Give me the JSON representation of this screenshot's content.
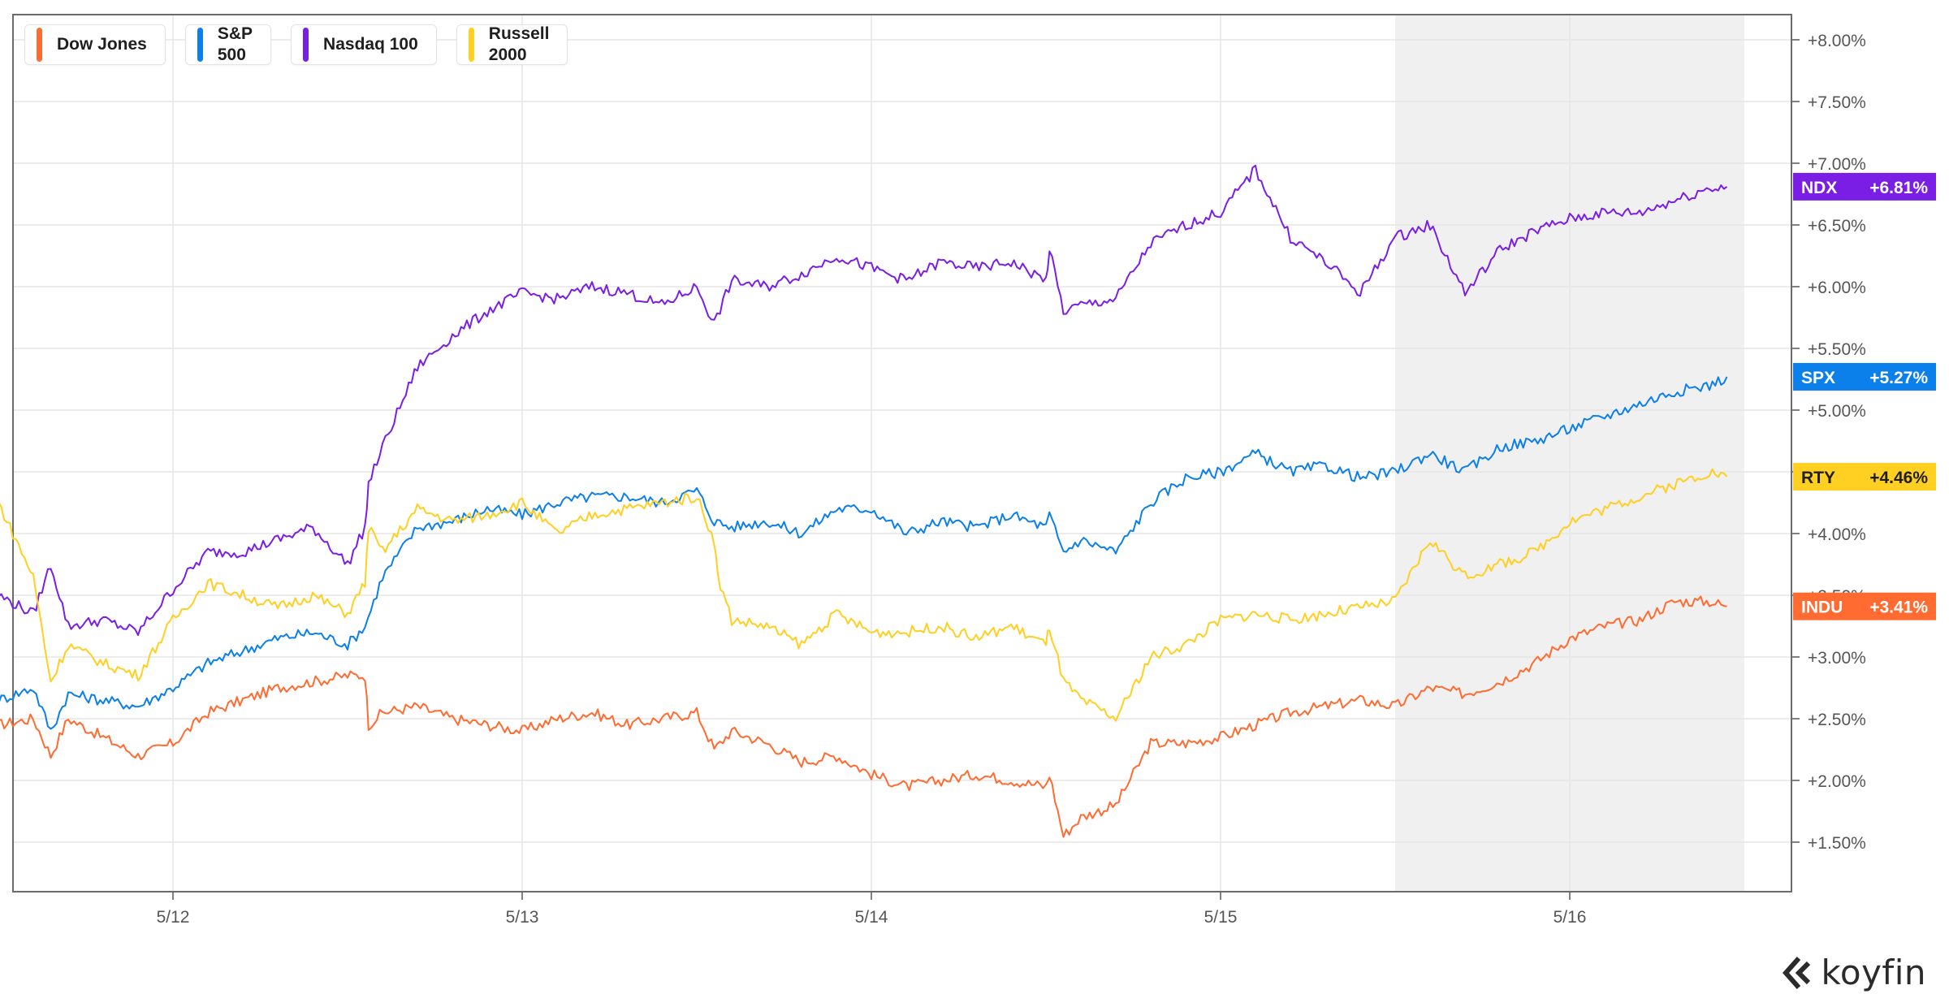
{
  "chart_data": {
    "type": "line",
    "x_ticks": [
      "5/12",
      "5/13",
      "5/14",
      "5/15",
      "5/16"
    ],
    "y_ticks": [
      "+1.50%",
      "+2.00%",
      "+2.50%",
      "+3.00%",
      "+3.50%",
      "+4.00%",
      "+4.50%",
      "+5.00%",
      "+5.50%",
      "+6.00%",
      "+6.50%",
      "+7.00%",
      "+7.50%",
      "+8.00%"
    ],
    "ylim": [
      1.1,
      8.2
    ],
    "grid": true,
    "legend_position": "top-left",
    "shaded_sessions": [
      [
        5.5,
        6.5
      ],
      [
        7.5,
        8.5
      ]
    ],
    "x_axis_note": "x values are trading days; day 1 = 5/12, 0.5 = session start",
    "series": [
      {
        "name": "Dow Jones",
        "ticker": "INDU",
        "end_label": "+3.41%",
        "end_value": 3.41,
        "color": "#ff6b30",
        "points": [
          [
            0.5,
            2.45
          ],
          [
            0.6,
            2.5
          ],
          [
            0.65,
            2.2
          ],
          [
            0.7,
            2.5
          ],
          [
            0.8,
            2.35
          ],
          [
            0.9,
            2.2
          ],
          [
            1.0,
            2.3
          ],
          [
            1.1,
            2.55
          ],
          [
            1.2,
            2.65
          ],
          [
            1.3,
            2.75
          ],
          [
            1.4,
            2.8
          ],
          [
            1.5,
            2.85
          ],
          [
            1.55,
            2.85
          ],
          [
            1.56,
            2.45
          ],
          [
            1.6,
            2.55
          ],
          [
            1.7,
            2.6
          ],
          [
            1.8,
            2.5
          ],
          [
            1.9,
            2.45
          ],
          [
            2.0,
            2.4
          ],
          [
            2.1,
            2.5
          ],
          [
            2.2,
            2.55
          ],
          [
            2.3,
            2.45
          ],
          [
            2.4,
            2.5
          ],
          [
            2.5,
            2.55
          ],
          [
            2.55,
            2.25
          ],
          [
            2.6,
            2.4
          ],
          [
            2.7,
            2.3
          ],
          [
            2.8,
            2.15
          ],
          [
            2.9,
            2.2
          ],
          [
            3.0,
            2.05
          ],
          [
            3.1,
            1.95
          ],
          [
            3.2,
            2.0
          ],
          [
            3.3,
            2.05
          ],
          [
            3.4,
            2.0
          ],
          [
            3.5,
            1.95
          ],
          [
            3.51,
            2.05
          ],
          [
            3.55,
            1.55
          ],
          [
            3.6,
            1.7
          ],
          [
            3.7,
            1.8
          ],
          [
            3.8,
            2.3
          ],
          [
            3.9,
            2.3
          ],
          [
            4.0,
            2.35
          ],
          [
            4.1,
            2.45
          ],
          [
            4.2,
            2.55
          ],
          [
            4.3,
            2.6
          ],
          [
            4.4,
            2.65
          ],
          [
            4.5,
            2.6
          ],
          [
            4.6,
            2.75
          ],
          [
            4.7,
            2.7
          ],
          [
            4.8,
            2.8
          ],
          [
            4.9,
            2.95
          ],
          [
            5.0,
            3.15
          ],
          [
            5.1,
            3.25
          ],
          [
            5.2,
            3.3
          ],
          [
            5.3,
            3.45
          ],
          [
            5.4,
            3.45
          ],
          [
            5.45,
            3.41
          ]
        ]
      },
      {
        "name": "S&P 500",
        "ticker": "SPX",
        "end_label": "+5.27%",
        "end_value": 5.27,
        "color": "#0b7fea",
        "points": [
          [
            0.5,
            2.65
          ],
          [
            0.6,
            2.75
          ],
          [
            0.65,
            2.4
          ],
          [
            0.7,
            2.7
          ],
          [
            0.8,
            2.65
          ],
          [
            0.9,
            2.6
          ],
          [
            1.0,
            2.75
          ],
          [
            1.1,
            2.95
          ],
          [
            1.2,
            3.05
          ],
          [
            1.3,
            3.15
          ],
          [
            1.4,
            3.2
          ],
          [
            1.5,
            3.1
          ],
          [
            1.55,
            3.25
          ],
          [
            1.6,
            3.65
          ],
          [
            1.7,
            4.05
          ],
          [
            1.8,
            4.1
          ],
          [
            1.9,
            4.2
          ],
          [
            2.0,
            4.15
          ],
          [
            2.1,
            4.25
          ],
          [
            2.2,
            4.3
          ],
          [
            2.3,
            4.3
          ],
          [
            2.4,
            4.25
          ],
          [
            2.5,
            4.35
          ],
          [
            2.55,
            4.1
          ],
          [
            2.6,
            4.05
          ],
          [
            2.7,
            4.1
          ],
          [
            2.8,
            4.0
          ],
          [
            2.9,
            4.2
          ],
          [
            3.0,
            4.2
          ],
          [
            3.1,
            4.0
          ],
          [
            3.2,
            4.1
          ],
          [
            3.3,
            4.05
          ],
          [
            3.4,
            4.15
          ],
          [
            3.5,
            4.05
          ],
          [
            3.51,
            4.15
          ],
          [
            3.55,
            3.85
          ],
          [
            3.6,
            3.95
          ],
          [
            3.7,
            3.85
          ],
          [
            3.8,
            4.25
          ],
          [
            3.9,
            4.45
          ],
          [
            4.0,
            4.5
          ],
          [
            4.1,
            4.65
          ],
          [
            4.2,
            4.5
          ],
          [
            4.3,
            4.55
          ],
          [
            4.4,
            4.45
          ],
          [
            4.5,
            4.5
          ],
          [
            4.6,
            4.65
          ],
          [
            4.7,
            4.5
          ],
          [
            4.8,
            4.7
          ],
          [
            4.9,
            4.75
          ],
          [
            5.0,
            4.85
          ],
          [
            5.1,
            4.95
          ],
          [
            5.2,
            5.05
          ],
          [
            5.3,
            5.15
          ],
          [
            5.4,
            5.2
          ],
          [
            5.45,
            5.27
          ]
        ]
      },
      {
        "name": "Nasdaq 100",
        "ticker": "NDX",
        "end_label": "+6.81%",
        "end_value": 6.81,
        "color": "#7a1ee6",
        "points": [
          [
            0.5,
            3.5
          ],
          [
            0.6,
            3.35
          ],
          [
            0.65,
            3.75
          ],
          [
            0.7,
            3.25
          ],
          [
            0.8,
            3.3
          ],
          [
            0.9,
            3.2
          ],
          [
            1.0,
            3.55
          ],
          [
            1.1,
            3.85
          ],
          [
            1.2,
            3.85
          ],
          [
            1.3,
            3.95
          ],
          [
            1.4,
            4.05
          ],
          [
            1.5,
            3.75
          ],
          [
            1.55,
            4.05
          ],
          [
            1.56,
            4.4
          ],
          [
            1.6,
            4.7
          ],
          [
            1.7,
            5.35
          ],
          [
            1.8,
            5.6
          ],
          [
            1.9,
            5.8
          ],
          [
            2.0,
            5.95
          ],
          [
            2.1,
            5.9
          ],
          [
            2.2,
            6.0
          ],
          [
            2.3,
            5.95
          ],
          [
            2.4,
            5.85
          ],
          [
            2.5,
            6.0
          ],
          [
            2.55,
            5.7
          ],
          [
            2.6,
            6.05
          ],
          [
            2.7,
            6.0
          ],
          [
            2.8,
            6.1
          ],
          [
            2.9,
            6.25
          ],
          [
            3.0,
            6.15
          ],
          [
            3.1,
            6.05
          ],
          [
            3.2,
            6.2
          ],
          [
            3.3,
            6.15
          ],
          [
            3.4,
            6.2
          ],
          [
            3.5,
            6.05
          ],
          [
            3.51,
            6.3
          ],
          [
            3.55,
            5.8
          ],
          [
            3.6,
            5.85
          ],
          [
            3.7,
            5.9
          ],
          [
            3.8,
            6.35
          ],
          [
            3.9,
            6.5
          ],
          [
            4.0,
            6.6
          ],
          [
            4.1,
            6.95
          ],
          [
            4.2,
            6.4
          ],
          [
            4.3,
            6.2
          ],
          [
            4.4,
            5.95
          ],
          [
            4.5,
            6.4
          ],
          [
            4.6,
            6.5
          ],
          [
            4.7,
            5.95
          ],
          [
            4.8,
            6.3
          ],
          [
            4.9,
            6.45
          ],
          [
            5.0,
            6.55
          ],
          [
            5.1,
            6.6
          ],
          [
            5.2,
            6.6
          ],
          [
            5.3,
            6.7
          ],
          [
            5.4,
            6.8
          ],
          [
            5.45,
            6.81
          ]
        ]
      },
      {
        "name": "Russell 2000",
        "ticker": "RTY",
        "end_label": "+4.46%",
        "end_value": 4.46,
        "color": "#ffcf21",
        "points": [
          [
            0.5,
            4.25
          ],
          [
            0.6,
            3.65
          ],
          [
            0.65,
            2.8
          ],
          [
            0.7,
            3.1
          ],
          [
            0.8,
            2.95
          ],
          [
            0.9,
            2.85
          ],
          [
            1.0,
            3.3
          ],
          [
            1.1,
            3.6
          ],
          [
            1.2,
            3.5
          ],
          [
            1.3,
            3.4
          ],
          [
            1.4,
            3.5
          ],
          [
            1.5,
            3.35
          ],
          [
            1.55,
            3.6
          ],
          [
            1.56,
            4.05
          ],
          [
            1.6,
            3.85
          ],
          [
            1.7,
            4.2
          ],
          [
            1.8,
            4.1
          ],
          [
            1.9,
            4.15
          ],
          [
            2.0,
            4.25
          ],
          [
            2.1,
            4.0
          ],
          [
            2.2,
            4.15
          ],
          [
            2.3,
            4.2
          ],
          [
            2.4,
            4.25
          ],
          [
            2.5,
            4.3
          ],
          [
            2.55,
            3.95
          ],
          [
            2.56,
            3.65
          ],
          [
            2.6,
            3.3
          ],
          [
            2.7,
            3.25
          ],
          [
            2.8,
            3.1
          ],
          [
            2.9,
            3.35
          ],
          [
            3.0,
            3.2
          ],
          [
            3.1,
            3.2
          ],
          [
            3.2,
            3.25
          ],
          [
            3.3,
            3.15
          ],
          [
            3.4,
            3.25
          ],
          [
            3.5,
            3.1
          ],
          [
            3.51,
            3.25
          ],
          [
            3.55,
            2.8
          ],
          [
            3.6,
            2.65
          ],
          [
            3.7,
            2.5
          ],
          [
            3.8,
            3.0
          ],
          [
            3.9,
            3.1
          ],
          [
            4.0,
            3.3
          ],
          [
            4.1,
            3.35
          ],
          [
            4.2,
            3.3
          ],
          [
            4.3,
            3.35
          ],
          [
            4.4,
            3.4
          ],
          [
            4.5,
            3.45
          ],
          [
            4.6,
            3.95
          ],
          [
            4.7,
            3.65
          ],
          [
            4.8,
            3.75
          ],
          [
            4.9,
            3.85
          ],
          [
            5.0,
            4.1
          ],
          [
            5.1,
            4.2
          ],
          [
            5.2,
            4.3
          ],
          [
            5.3,
            4.4
          ],
          [
            5.4,
            4.5
          ],
          [
            5.45,
            4.46
          ]
        ]
      }
    ]
  },
  "legend": [
    {
      "label": "Dow Jones",
      "color": "#ff6b30"
    },
    {
      "label": "S&P 500",
      "color": "#0b7fea"
    },
    {
      "label": "Nasdaq 100",
      "color": "#7a1ee6"
    },
    {
      "label": "Russell 2000",
      "color": "#ffcf21"
    }
  ],
  "legend_labels": {
    "dow": "Dow Jones",
    "spx": "S&P\n500",
    "ndx": "Nasdaq 100",
    "rty": "Russell\n2000"
  },
  "brand": {
    "name": "koyfin",
    "icon": "koyfin-logo-icon"
  },
  "colors": {
    "grid": "#e6e6e6",
    "shade": "#f0f0f0",
    "axis": "#555555",
    "tick_text": "#555555"
  }
}
